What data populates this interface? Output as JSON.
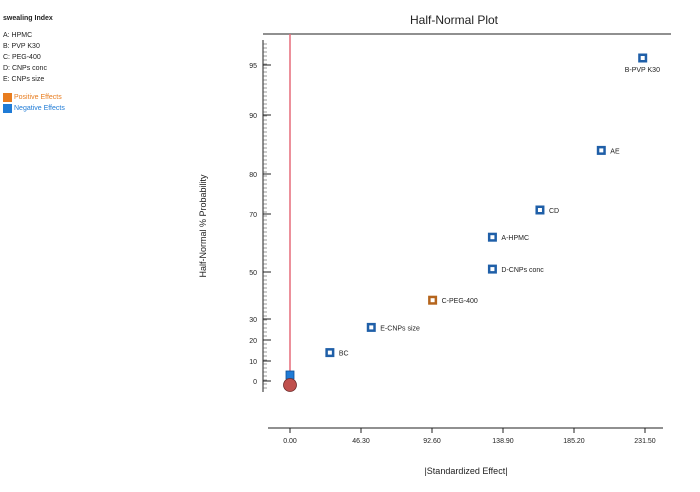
{
  "legend": {
    "title": "swealing Index",
    "factors": [
      "A: HPMC",
      "B: PVP K30",
      "C: PEG-400",
      "D: CNPs conc",
      "E: CNPs size"
    ],
    "positive_label": "Positive Effects",
    "negative_label": "Negative Effects",
    "positive_color": "#e87c1e",
    "negative_color": "#1f7bd6"
  },
  "chart_data": {
    "type": "scatter",
    "title": "Half-Normal Plot",
    "xlabel": "|Standardized Effect|",
    "ylabel": "Half-Normal % Probability",
    "xlim": [
      -13,
      243
    ],
    "x_ticks": [
      0,
      46.3,
      92.6,
      138.9,
      185.2,
      231.5
    ],
    "x_tick_labels": [
      "0.00",
      "46.30",
      "92.60",
      "138.90",
      "185.20",
      "231.50"
    ],
    "y_ticks": [
      0,
      10,
      20,
      30,
      50,
      70,
      80,
      90,
      95
    ],
    "y_tick_labels": [
      "0",
      "10",
      "20",
      "30",
      "50",
      "70",
      "80",
      "90",
      "95"
    ],
    "reference_line_x": 0,
    "error_point": {
      "x": 0,
      "y": -3
    },
    "error_square": {
      "x": 0,
      "y": 3
    },
    "points": [
      {
        "label": "BC",
        "x": 26,
        "y": 14,
        "effect": "negative"
      },
      {
        "label": "E-CNPs size",
        "x": 53,
        "y": 26,
        "effect": "negative"
      },
      {
        "label": "C-PEG-400",
        "x": 93,
        "y": 38,
        "effect": "positive"
      },
      {
        "label": "D-CNPs conc",
        "x": 132,
        "y": 51,
        "effect": "negative"
      },
      {
        "label": "A-HPMC",
        "x": 132,
        "y": 62,
        "effect": "negative"
      },
      {
        "label": "CD",
        "x": 163,
        "y": 71,
        "effect": "negative"
      },
      {
        "label": "AE",
        "x": 203,
        "y": 84,
        "effect": "negative"
      },
      {
        "label": "B-PVP K30",
        "x": 230,
        "y": 96,
        "effect": "negative"
      }
    ]
  }
}
